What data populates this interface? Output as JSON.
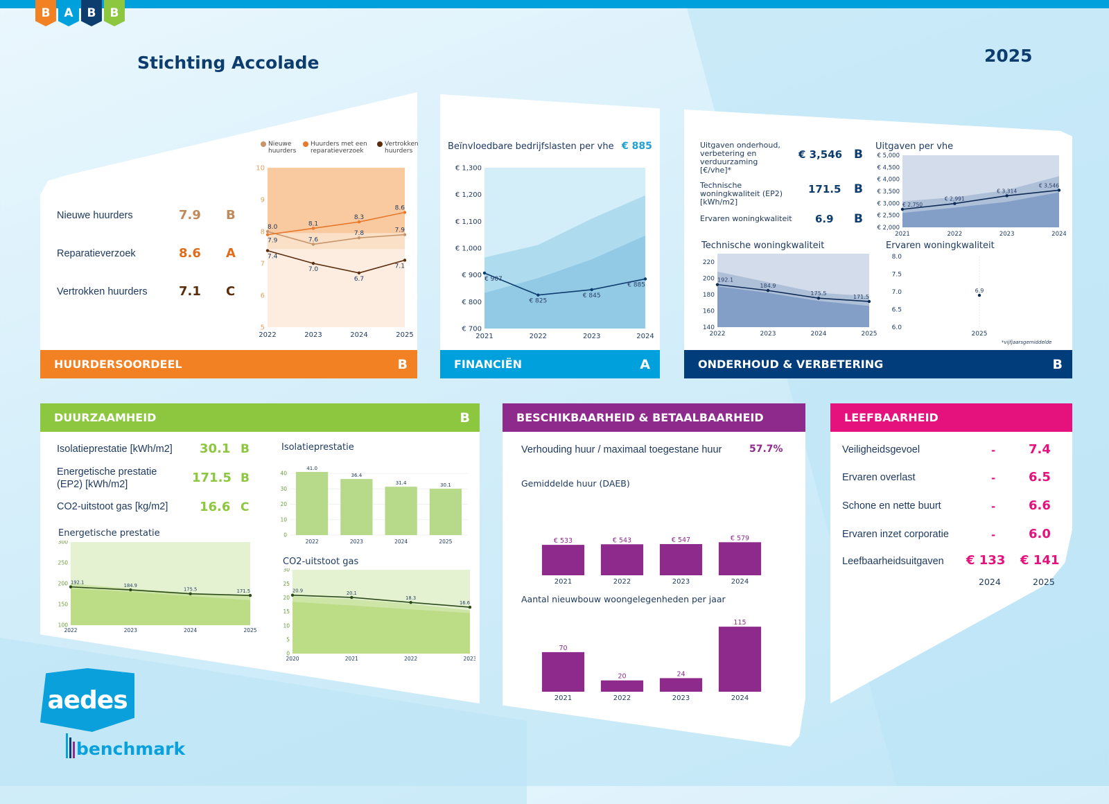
{
  "header": {
    "logo_letters": [
      "B",
      "A",
      "B",
      "B"
    ],
    "logo_colors": [
      "#f28123",
      "#00a0dc",
      "#0d3c6e",
      "#8dc63f"
    ],
    "title": "Stichting Accolade",
    "year": "2025"
  },
  "colors": {
    "huurdersoordeel": "#f28123",
    "financien": "#00a0dc",
    "onderhoud": "#003d7a",
    "duurzaamheid": "#8dc63f",
    "beschikbaarheid": "#8e2a8c",
    "leefbaarheid": "#e5127d"
  },
  "huurdersoordeel": {
    "title": "HUURDERSOORDEEL",
    "grade": "B",
    "kpis": [
      {
        "label": "Nieuwe huurders",
        "value": "7.9",
        "grade": "B",
        "color": "#c0895a"
      },
      {
        "label": "Reparatieverzoek",
        "value": "8.6",
        "grade": "A",
        "color": "#e06c1a"
      },
      {
        "label": "Vertrokken huurders",
        "value": "7.1",
        "grade": "C",
        "color": "#5a2d0c"
      }
    ],
    "legend": [
      "Nieuwe huurders",
      "Huurders met een reparatieverzoek",
      "Vertrokken huurders"
    ]
  },
  "financien": {
    "title": "FINANCIËN",
    "grade": "A",
    "chart_title": "Beïnvloedbare bedrijfslasten per vhe",
    "value": "€ 885"
  },
  "onderhoud": {
    "title": "ONDERHOUD & VERBETERING",
    "grade": "B",
    "kpis": [
      {
        "label": "Uitgaven onderhoud, verbetering en verduurzaming [€/vhe]*",
        "value": "€ 3,546",
        "grade": "B"
      },
      {
        "label": "Technische woningkwaliteit (EP2) [kWh/m2]",
        "value": "171.5",
        "grade": "B"
      },
      {
        "label": "Ervaren woningkwaliteit",
        "value": "6.9",
        "grade": "B"
      }
    ],
    "chart_titles": [
      "Uitgaven per vhe",
      "Technische woningkwaliteit",
      "Ervaren woningkwaliteit"
    ],
    "footnote": "*vijfjaarsgemiddelde"
  },
  "duurzaamheid": {
    "title": "DUURZAAMHEID",
    "grade": "B",
    "kpis": [
      {
        "label": "Isolatieprestatie [kWh/m2]",
        "value": "30.1",
        "grade": "B"
      },
      {
        "label": "Energetische prestatie (EP2) [kWh/m2]",
        "value": "171.5",
        "grade": "B"
      },
      {
        "label": "CO2-uitstoot gas [kg/m2]",
        "value": "16.6",
        "grade": "C"
      }
    ],
    "chart_titles": [
      "Isolatieprestatie",
      "Energetische prestatie",
      "CO2-uitstoot gas"
    ]
  },
  "beschikbaarheid": {
    "title": "BESCHIKBAARHEID & BETAALBAARHEID",
    "ratio_label": "Verhouding huur / maximaal toegestane huur",
    "ratio_value": "57.7%",
    "chart_titles": [
      "Gemiddelde huur (DAEB)",
      "Aantal nieuwbouw woongelegenheden per jaar"
    ]
  },
  "leefbaarheid": {
    "title": "LEEFBAARHEID",
    "rows": [
      {
        "label": "Veiligheidsgevoel",
        "prev": "-",
        "value": "7.4"
      },
      {
        "label": "Ervaren overlast",
        "prev": "-",
        "value": "6.5"
      },
      {
        "label": "Schone en nette buurt",
        "prev": "-",
        "value": "6.6"
      },
      {
        "label": "Ervaren inzet corporatie",
        "prev": "-",
        "value": "6.0"
      }
    ],
    "spend_label": "Leefbaarheidsuitgaven",
    "spend_values": [
      "€ 133",
      "€ 141"
    ],
    "spend_years": [
      "2024",
      "2025"
    ]
  },
  "logos": {
    "aedes": "aedes",
    "benchmark": "benchmark"
  },
  "chart_data": [
    {
      "type": "line",
      "categories": [
        "2022",
        "2023",
        "2024",
        "2025"
      ],
      "ylim": [
        5,
        10
      ],
      "yticks": [
        5,
        6,
        7,
        8,
        9,
        10
      ],
      "ytick_labels": [
        "5",
        "6",
        "7",
        "8",
        "9",
        "10"
      ],
      "tick_color": "#e0a060",
      "bands": [
        {
          "upper": [
            10,
            10,
            10,
            10
          ],
          "color": "#f9c9a0"
        },
        {
          "upper": [
            7.95,
            7.95,
            7.95,
            7.95
          ],
          "color": "#fbe0c8"
        },
        {
          "upper": [
            7.45,
            7.45,
            7.45,
            7.45
          ],
          "color": "#fdece0"
        }
      ],
      "series": [
        {
          "name": "Nieuwe huurders",
          "values": [
            8.0,
            7.6,
            7.8,
            7.9
          ],
          "labels": [
            "8.0",
            "7.6",
            "7.8",
            "7.9"
          ],
          "color": "#c8956a",
          "label_pos": "above"
        },
        {
          "name": "Huurders met een reparatieverzoek",
          "values": [
            7.9,
            8.1,
            8.3,
            8.6
          ],
          "labels": [
            "7.9",
            "8.1",
            "8.3",
            "8.6"
          ],
          "color": "#e8782a",
          "label_pos": "above"
        },
        {
          "name": "Vertrokken huurders",
          "values": [
            7.4,
            7.0,
            6.7,
            7.1
          ],
          "labels": [
            "7.4",
            "7.0",
            "6.7",
            "7.1"
          ],
          "color": "#5a2d0c",
          "label_pos": "below"
        }
      ]
    },
    {
      "type": "line",
      "categories": [
        "2021",
        "2022",
        "2023",
        "2024"
      ],
      "ylim": [
        700,
        1300
      ],
      "yticks": [
        700,
        800,
        900,
        1000,
        1100,
        1200,
        1300
      ],
      "ytick_labels": [
        "€ 700",
        "€ 800",
        "€ 900",
        "€ 1,000",
        "€ 1,100",
        "€ 1,200",
        "€ 1,300"
      ],
      "tick_color": "#1f3a60",
      "bands": [
        {
          "upper": [
            1300,
            1300,
            1300,
            1300
          ],
          "color": "#d3eef8"
        },
        {
          "upper": [
            965,
            1012,
            1110,
            1197
          ],
          "color": "#aedbee"
        },
        {
          "upper": [
            833,
            888,
            958,
            1047
          ],
          "color": "#92cae6"
        }
      ],
      "series": [
        {
          "values": [
            907,
            825,
            845,
            885
          ],
          "labels": [
            "€ 907",
            "€ 825",
            "€ 845",
            "€ 885"
          ],
          "color": "#0d3c6e",
          "label_pos": "below"
        }
      ]
    },
    {
      "type": "line",
      "categories": [
        "2021",
        "2022",
        "2023",
        "2024"
      ],
      "ylim": [
        2000,
        5000
      ],
      "yticks": [
        2000,
        2500,
        3000,
        3500,
        4000,
        4500,
        5000
      ],
      "ytick_labels": [
        "€ 2,000",
        "€ 2,500",
        "€ 3,000",
        "€ 3,500",
        "€ 4,000",
        "€ 4,500",
        "€ 5,000"
      ],
      "tick_color": "#1f3a60",
      "bands": [
        {
          "upper": [
            5000,
            5000,
            5000,
            5000
          ],
          "color": "#d3dcea"
        },
        {
          "upper": [
            3080,
            3250,
            3550,
            4130
          ],
          "color": "#aebfd8"
        },
        {
          "upper": [
            2600,
            2820,
            3060,
            3460
          ],
          "color": "#849fc7"
        }
      ],
      "series": [
        {
          "values": [
            2750,
            2991,
            3314,
            3546
          ],
          "labels": [
            "€ 2,750",
            "€ 2,991",
            "€ 3,314",
            "€ 3,546"
          ],
          "color": "#0d2a55",
          "label_pos": "above"
        }
      ]
    },
    {
      "type": "line",
      "categories": [
        "2022",
        "2023",
        "2024",
        "2025"
      ],
      "ylim": [
        140,
        230
      ],
      "yticks": [
        140,
        160,
        180,
        200,
        220
      ],
      "ytick_labels": [
        "140",
        "160",
        "180",
        "200",
        "220"
      ],
      "tick_color": "#1f3a60",
      "bands": [
        {
          "upper": [
            230,
            230,
            230,
            230
          ],
          "color": "#d3dcea"
        },
        {
          "upper": [
            208,
            195,
            182,
            178
          ],
          "color": "#aebfd8"
        },
        {
          "upper": [
            190,
            182,
            172,
            166
          ],
          "color": "#849fc7"
        }
      ],
      "series": [
        {
          "values": [
            192.1,
            184.9,
            175.5,
            171.5
          ],
          "labels": [
            "192.1",
            "184.9",
            "175.5",
            "171.5"
          ],
          "color": "#0d2a55",
          "label_pos": "above"
        }
      ]
    },
    {
      "type": "scatter",
      "categories": [
        "2025"
      ],
      "ylim": [
        6,
        8
      ],
      "yticks": [
        6,
        6.5,
        7,
        7.5,
        8
      ],
      "ytick_labels": [
        "6.0",
        "6.5",
        "7.0",
        "7.5",
        "8.0"
      ],
      "tick_color": "#1f3a60",
      "series": [
        {
          "values": [
            6.9
          ],
          "labels": [
            "6.9"
          ],
          "color": "#0d2a55",
          "label_pos": "above"
        }
      ]
    },
    {
      "type": "bar",
      "categories": [
        "2022",
        "2023",
        "2024",
        "2025"
      ],
      "ylim": [
        0,
        45
      ],
      "yticks": [
        0,
        10,
        20,
        30,
        40
      ],
      "ytick_labels": [
        "0",
        "10",
        "20",
        "30",
        "40"
      ],
      "tick_color": "#6a9a3a",
      "series": [
        {
          "values": [
            41.0,
            36.4,
            31.4,
            30.1
          ],
          "labels": [
            "41.0",
            "36.4",
            "31.4",
            "30.1"
          ],
          "color": "#b7d98a"
        }
      ]
    },
    {
      "type": "line",
      "categories": [
        "2022",
        "2023",
        "2024",
        "2025"
      ],
      "ylim": [
        100,
        300
      ],
      "yticks": [
        100,
        150,
        200,
        250,
        300
      ],
      "ytick_labels": [
        "100",
        "150",
        "200",
        "250",
        "300"
      ],
      "tick_color": "#6a9a3a",
      "bands": [
        {
          "upper": [
            300,
            300,
            300,
            300
          ],
          "color": "#e4f2d2"
        },
        {
          "upper": [
            200,
            188,
            178,
            170
          ],
          "color": "#cde6a8"
        },
        {
          "upper": [
            188,
            180,
            170,
            160
          ],
          "color": "#bcdc85"
        }
      ],
      "series": [
        {
          "values": [
            192.1,
            184.9,
            175.5,
            171.5
          ],
          "labels": [
            "192.1",
            "184.9",
            "175.5",
            "171.5"
          ],
          "color": "#2d4a1a",
          "label_pos": "above"
        }
      ]
    },
    {
      "type": "line",
      "categories": [
        "2020",
        "2021",
        "2022",
        "2023"
      ],
      "ylim": [
        0,
        30
      ],
      "yticks": [
        0,
        5,
        10,
        15,
        20,
        25,
        30
      ],
      "ytick_labels": [
        "0",
        "5",
        "10",
        "15",
        "20",
        "25",
        "30"
      ],
      "tick_color": "#6a9a3a",
      "bands": [
        {
          "upper": [
            30,
            30,
            30,
            30
          ],
          "color": "#e4f2d2"
        },
        {
          "upper": [
            20.5,
            19.5,
            17.8,
            15.5
          ],
          "color": "#cde6a8"
        },
        {
          "upper": [
            18.5,
            17.2,
            15.8,
            14.5
          ],
          "color": "#bcdc85"
        }
      ],
      "series": [
        {
          "values": [
            20.9,
            20.1,
            18.3,
            16.6
          ],
          "labels": [
            "20.9",
            "20.1",
            "18.3",
            "16.6"
          ],
          "color": "#2d4a1a",
          "label_pos": "above"
        }
      ]
    },
    {
      "type": "bar",
      "categories": [
        "2021",
        "2022",
        "2023",
        "2024"
      ],
      "ylim": [
        0,
        850
      ],
      "series": [
        {
          "values": [
            533,
            543,
            547,
            579
          ],
          "labels": [
            "€ 533",
            "€ 543",
            "€ 547",
            "€ 579"
          ],
          "color": "#8e2a8c"
        }
      ]
    },
    {
      "type": "bar",
      "categories": [
        "2021",
        "2022",
        "2023",
        "2024"
      ],
      "ylim": [
        0,
        125
      ],
      "series": [
        {
          "values": [
            70,
            20,
            24,
            115
          ],
          "labels": [
            "70",
            "20",
            "24",
            "115"
          ],
          "color": "#8e2a8c"
        }
      ]
    }
  ]
}
